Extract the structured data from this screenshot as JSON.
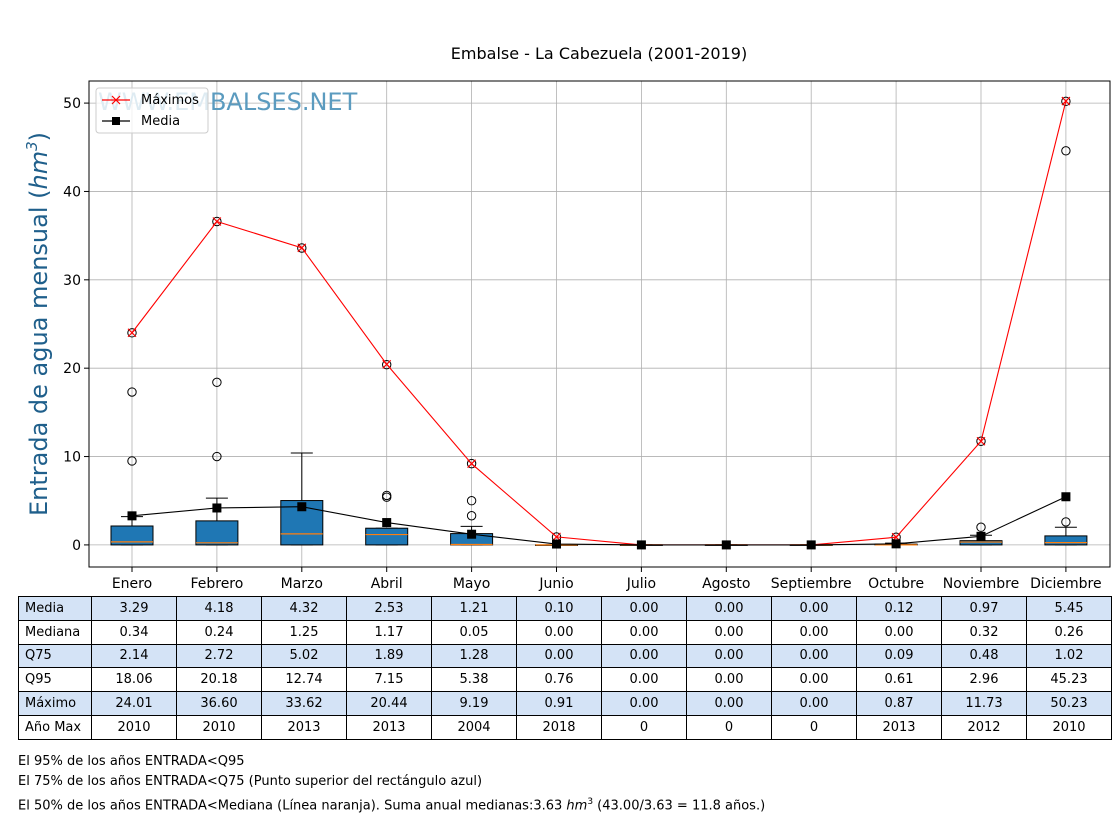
{
  "chart_data": {
    "type": "box",
    "title": "Embalse - La Cabezuela (2001-2019)",
    "ylabel": "Entrada de agua mensual",
    "ylabel_unit": "hm",
    "ylabel_unit_exp": "3",
    "ylim": [
      -2.5,
      52.5
    ],
    "yticks": [
      0,
      10,
      20,
      30,
      40,
      50
    ],
    "grid": true,
    "legend_position": "top-left",
    "watermark": "WWW.EMBALSES.NET",
    "categories": [
      "Enero",
      "Febrero",
      "Marzo",
      "Abril",
      "Mayo",
      "Junio",
      "Julio",
      "Agosto",
      "Septiembre",
      "Octubre",
      "Noviembre",
      "Diciembre"
    ],
    "boxes": [
      {
        "q1": 0.0,
        "median": 0.34,
        "q3": 2.14,
        "whisker_low": 0.0,
        "whisker_high": 3.2,
        "outliers": [
          9.5,
          17.3,
          24.0
        ]
      },
      {
        "q1": 0.0,
        "median": 0.24,
        "q3": 2.72,
        "whisker_low": 0.0,
        "whisker_high": 5.3,
        "outliers": [
          10.0,
          18.4,
          36.6
        ]
      },
      {
        "q1": 0.0,
        "median": 1.25,
        "q3": 5.02,
        "whisker_low": 0.0,
        "whisker_high": 10.4,
        "outliers": [
          33.6
        ]
      },
      {
        "q1": 0.0,
        "median": 1.17,
        "q3": 1.89,
        "whisker_low": 0.0,
        "whisker_high": 1.89,
        "outliers": [
          5.4,
          5.6,
          20.4
        ]
      },
      {
        "q1": 0.0,
        "median": 0.05,
        "q3": 1.28,
        "whisker_low": 0.0,
        "whisker_high": 2.1,
        "outliers": [
          3.3,
          5.0,
          9.2
        ]
      },
      {
        "q1": 0.0,
        "median": 0.0,
        "q3": 0.0,
        "whisker_low": 0.0,
        "whisker_high": 0.0,
        "outliers": [
          0.9
        ]
      },
      {
        "q1": 0.0,
        "median": 0.0,
        "q3": 0.0,
        "whisker_low": 0.0,
        "whisker_high": 0.0,
        "outliers": []
      },
      {
        "q1": 0.0,
        "median": 0.0,
        "q3": 0.0,
        "whisker_low": 0.0,
        "whisker_high": 0.0,
        "outliers": []
      },
      {
        "q1": 0.0,
        "median": 0.0,
        "q3": 0.0,
        "whisker_low": 0.0,
        "whisker_high": 0.0,
        "outliers": []
      },
      {
        "q1": 0.0,
        "median": 0.0,
        "q3": 0.09,
        "whisker_low": 0.0,
        "whisker_high": 0.2,
        "outliers": [
          0.87
        ]
      },
      {
        "q1": 0.0,
        "median": 0.32,
        "q3": 0.48,
        "whisker_low": 0.0,
        "whisker_high": 1.1,
        "outliers": [
          2.0,
          11.73
        ]
      },
      {
        "q1": 0.0,
        "median": 0.26,
        "q3": 1.02,
        "whisker_low": 0.0,
        "whisker_high": 2.0,
        "outliers": [
          2.6,
          44.6,
          50.2
        ]
      }
    ],
    "series": [
      {
        "name": "Máximos",
        "color": "#ff0000",
        "marker": "x",
        "values": [
          24.01,
          36.6,
          33.62,
          20.44,
          9.19,
          0.91,
          0.0,
          0.0,
          0.0,
          0.87,
          11.73,
          50.23
        ]
      },
      {
        "name": "Media",
        "color": "#000000",
        "marker": "square",
        "values": [
          3.29,
          4.18,
          4.32,
          2.53,
          1.21,
          0.1,
          0.0,
          0.0,
          0.0,
          0.12,
          0.97,
          5.45
        ]
      }
    ],
    "colors": {
      "box_fill": "#1f77b4",
      "median_line": "#ff7f0e",
      "grid": "#b0b0b0",
      "ylabel": "#1f5f8b",
      "watermark": "#5b9bbf",
      "table_shade": "#d4e3f6"
    }
  },
  "table": {
    "rows": [
      {
        "label": "Media",
        "shaded": true,
        "values": [
          "3.29",
          "4.18",
          "4.32",
          "2.53",
          "1.21",
          "0.10",
          "0.00",
          "0.00",
          "0.00",
          "0.12",
          "0.97",
          "5.45"
        ]
      },
      {
        "label": "Mediana",
        "shaded": false,
        "values": [
          "0.34",
          "0.24",
          "1.25",
          "1.17",
          "0.05",
          "0.00",
          "0.00",
          "0.00",
          "0.00",
          "0.00",
          "0.32",
          "0.26"
        ]
      },
      {
        "label": "Q75",
        "shaded": true,
        "values": [
          "2.14",
          "2.72",
          "5.02",
          "1.89",
          "1.28",
          "0.00",
          "0.00",
          "0.00",
          "0.00",
          "0.09",
          "0.48",
          "1.02"
        ]
      },
      {
        "label": "Q95",
        "shaded": false,
        "values": [
          "18.06",
          "20.18",
          "12.74",
          "7.15",
          "5.38",
          "0.76",
          "0.00",
          "0.00",
          "0.00",
          "0.61",
          "2.96",
          "45.23"
        ]
      },
      {
        "label": "Máximo",
        "shaded": true,
        "values": [
          "24.01",
          "36.60",
          "33.62",
          "20.44",
          "9.19",
          "0.91",
          "0.00",
          "0.00",
          "0.00",
          "0.87",
          "11.73",
          "50.23"
        ]
      },
      {
        "label": "Año Max",
        "shaded": false,
        "values": [
          "2010",
          "2010",
          "2013",
          "2013",
          "2004",
          "2018",
          "0",
          "0",
          "0",
          "2013",
          "2012",
          "2010"
        ]
      }
    ]
  },
  "notes": {
    "line1": "El 95% de los años ENTRADA<Q95",
    "line2": "El 75% de los años ENTRADA<Q75 (Punto superior del rectángulo azul)",
    "line3_prefix": "El 50% de los años ENTRADA<Mediana (Línea naranja). Suma anual medianas:3.63 ",
    "line3_unit": "hm",
    "line3_exp": "3",
    "line3_suffix": " (43.00/3.63 = 11.8 años.)"
  }
}
